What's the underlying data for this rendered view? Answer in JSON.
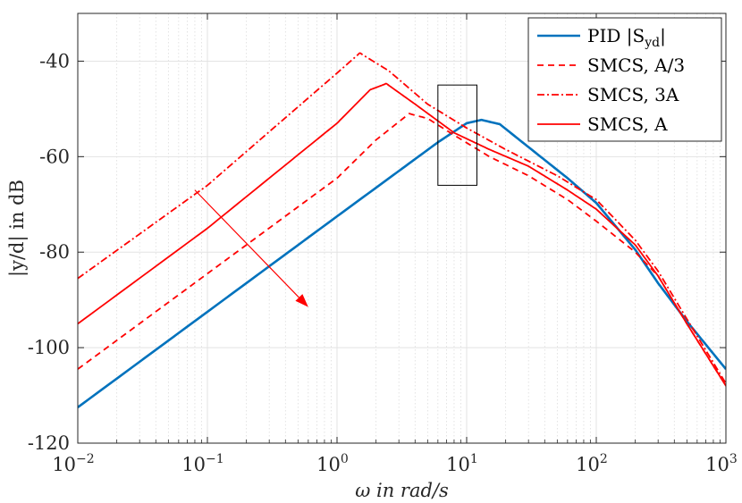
{
  "chart_data": {
    "type": "line",
    "title": "",
    "xlabel": "ω in rad/s",
    "ylabel": "|y/d| in dB",
    "xscale": "log",
    "xlim": [
      0.01,
      1000
    ],
    "ylim": [
      -120,
      -30
    ],
    "grid": true,
    "legend_position": "top-right",
    "x_ticks": [
      {
        "value": 0.01,
        "base": "10",
        "exp": "−2"
      },
      {
        "value": 0.1,
        "base": "10",
        "exp": "−1"
      },
      {
        "value": 1,
        "base": "10",
        "exp": "0"
      },
      {
        "value": 10,
        "base": "10",
        "exp": "1"
      },
      {
        "value": 100,
        "base": "10",
        "exp": "2"
      },
      {
        "value": 1000,
        "base": "10",
        "exp": "3"
      }
    ],
    "y_ticks": [
      {
        "value": -40,
        "label": "-40"
      },
      {
        "value": -60,
        "label": "-60"
      },
      {
        "value": -80,
        "label": "-80"
      },
      {
        "value": -100,
        "label": "-100"
      },
      {
        "value": -120,
        "label": "-120"
      }
    ],
    "series": [
      {
        "name": "PID |Syd|",
        "legend_main": "PID |S",
        "legend_sub": "yd",
        "legend_tail": "|",
        "color": "#0072BD",
        "dash": "solid",
        "x": [
          0.01,
          0.1,
          1,
          3,
          6,
          10,
          13,
          18,
          30,
          60,
          100,
          200,
          300,
          500,
          1000
        ],
        "y": [
          -112.5,
          -92.5,
          -72.5,
          -63,
          -57,
          -53,
          -52.3,
          -53.2,
          -58,
          -64.5,
          -69.7,
          -79.5,
          -86.5,
          -94.5,
          -104.5
        ]
      },
      {
        "name": "SMCS, A/3",
        "legend_main": "SMCS, A/3",
        "color": "#FF0000",
        "dash": "dashed",
        "x": [
          0.01,
          0.1,
          1,
          2,
          3.6,
          5,
          8,
          15,
          30,
          60,
          100,
          200,
          300,
          500,
          1000
        ],
        "y": [
          -104.5,
          -84.5,
          -64.5,
          -56.5,
          -51,
          -52,
          -55.5,
          -60,
          -64,
          -69,
          -73.5,
          -80,
          -85,
          -95,
          -108
        ]
      },
      {
        "name": "SMCS, 3A",
        "legend_main": "SMCS, 3A",
        "color": "#FF0000",
        "dash": "dashdot",
        "x": [
          0.01,
          0.1,
          1,
          1.5,
          2.5,
          5,
          10,
          20,
          50,
          100,
          200,
          300,
          500,
          1000
        ],
        "y": [
          -85.5,
          -66,
          -42.5,
          -38.3,
          -42,
          -49,
          -54,
          -58.5,
          -64,
          -69,
          -77.5,
          -84,
          -94,
          -107.5
        ]
      },
      {
        "name": "SMCS, A",
        "legend_main": "SMCS, A",
        "color": "#FF0000",
        "dash": "solid",
        "x": [
          0.01,
          0.1,
          1,
          1.8,
          2.4,
          4,
          8,
          15,
          30,
          60,
          100,
          200,
          300,
          500,
          1000
        ],
        "y": [
          -95,
          -75,
          -53,
          -46,
          -44.7,
          -49,
          -55,
          -58.5,
          -62,
          -67,
          -71,
          -78.5,
          -85,
          -95,
          -108
        ]
      }
    ],
    "annotations": [
      {
        "type": "rectangle",
        "x": [
          6,
          12
        ],
        "y": [
          -45,
          -66
        ],
        "color": "#000000"
      },
      {
        "type": "arrow",
        "from": [
          0.08,
          -67
        ],
        "to": [
          0.6,
          -91.5
        ],
        "color": "#FF0000"
      }
    ]
  }
}
